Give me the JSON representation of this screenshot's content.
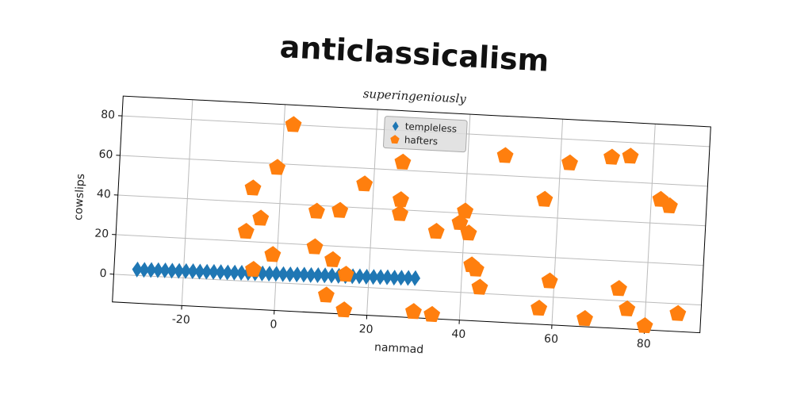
{
  "chart_data": {
    "type": "scatter",
    "title": "anticlassicalism",
    "subtitle": "superingeniously",
    "x_label": "nammad",
    "y_label": "cowslips",
    "xlim": [
      -35,
      92
    ],
    "ylim": [
      -14,
      90
    ],
    "xticks": [
      -20,
      0,
      20,
      40,
      60,
      80
    ],
    "yticks": [
      0,
      20,
      40,
      60,
      80
    ],
    "grid": true,
    "legend": "upper center",
    "series": [
      {
        "name": "templeless",
        "color": "#1f77b4",
        "marker": "diamond",
        "x": [
          -30,
          -28.5,
          -27,
          -25.5,
          -24,
          -22.5,
          -21,
          -19.5,
          -18,
          -16.5,
          -15,
          -13.5,
          -12,
          -10.5,
          -9,
          -7.5,
          -6,
          -4.5,
          -3,
          -1.5,
          0,
          1.5,
          3,
          4.5,
          6,
          7.5,
          9,
          10.5,
          12,
          13.5,
          15,
          16.5,
          18,
          19.5,
          21,
          22.5,
          24,
          25.5,
          27,
          28.5,
          30
        ],
        "values": [
          3,
          3,
          3.1,
          3.2,
          3.3,
          3.3,
          3.4,
          3.5,
          3.6,
          3.6,
          3.7,
          3.8,
          3.9,
          3.9,
          4,
          4.1,
          4.2,
          4.2,
          4.3,
          4.4,
          4.5,
          4.5,
          4.6,
          4.7,
          4.8,
          4.8,
          4.9,
          5,
          5.1,
          5.1,
          5.2,
          5.3,
          5.4,
          5.4,
          5.5,
          5.6,
          5.7,
          5.7,
          5.8,
          5.9,
          6
        ]
      },
      {
        "name": "hafters",
        "color": "#ff7f0e",
        "marker": "pentagon",
        "x": [
          2,
          -1,
          -6,
          -4,
          -7,
          -1,
          -5,
          8,
          13,
          18,
          8,
          12,
          11,
          15,
          15,
          26,
          26,
          26,
          30,
          34,
          34,
          40,
          39,
          41,
          42,
          43,
          44,
          48,
          57,
          57,
          59,
          62,
          67,
          71,
          75,
          74,
          76,
          82,
          84,
          80,
          87
        ],
        "values": [
          80,
          58,
          47,
          32,
          25,
          14,
          6,
          37,
          38,
          52,
          19,
          13,
          -5,
          6,
          -12,
          38,
          45,
          64,
          -11,
          30,
          -12,
          41,
          35,
          30,
          14,
          12,
          3,
          70,
          49,
          -6,
          8,
          68,
          -10,
          72,
          73,
          6,
          -4,
          52,
          49,
          -12,
          -5
        ]
      }
    ]
  }
}
